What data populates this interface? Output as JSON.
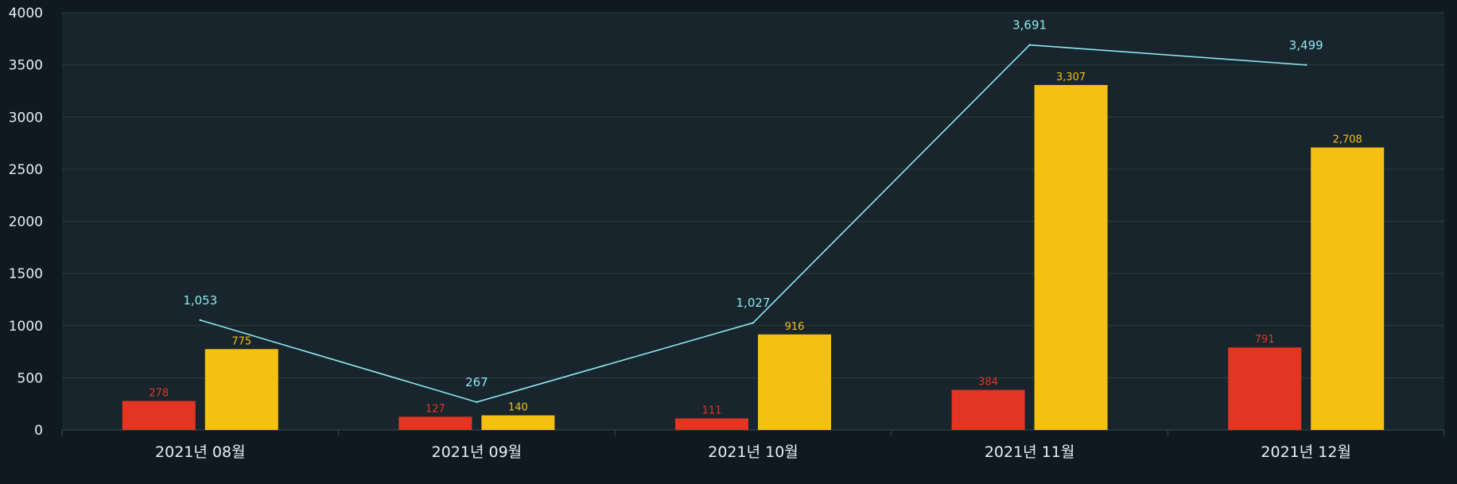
{
  "chart_data": {
    "type": "bar",
    "categories": [
      "2021년 08월",
      "2021년 09월",
      "2021년 10월",
      "2021년 11월",
      "2021년 12월"
    ],
    "series": [
      {
        "type": "bar",
        "color": "#e33622",
        "values": [
          278,
          127,
          111,
          384,
          791
        ],
        "labels": [
          "278",
          "127",
          "111",
          "384",
          "791"
        ]
      },
      {
        "type": "bar",
        "color": "#f5c012",
        "values": [
          775,
          140,
          916,
          3307,
          2708
        ],
        "labels": [
          "775",
          "140",
          "916",
          "3,307",
          "2,708"
        ]
      },
      {
        "type": "line",
        "color": "#8ee8f0",
        "values": [
          1053,
          267,
          1027,
          3691,
          3499
        ],
        "labels": [
          "1,053",
          "267",
          "1,027",
          "3,691",
          "3,499"
        ]
      }
    ],
    "ylim": [
      0,
      4000
    ],
    "yticks": [
      "0",
      "500",
      "1000",
      "1500",
      "2000",
      "2500",
      "3000",
      "3500",
      "4000"
    ],
    "grid": true,
    "legend": "none",
    "colors": {
      "background": "#0f1a20",
      "plot_background": "#18252c",
      "grid": "#2b3a42",
      "axis_text": "#e6eef2"
    }
  }
}
